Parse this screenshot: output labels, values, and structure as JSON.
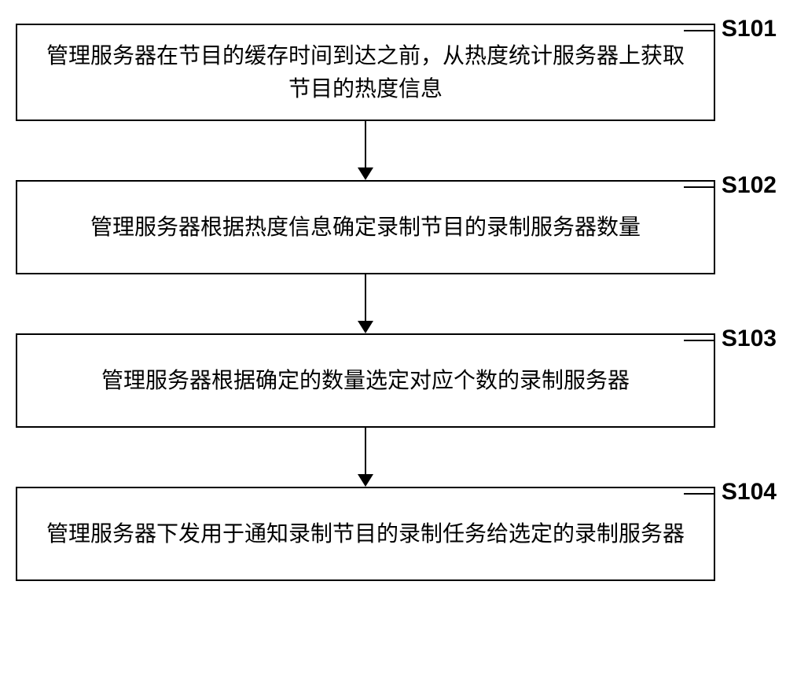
{
  "flowchart": {
    "type": "flowchart",
    "background_color": "#ffffff",
    "box_border_color": "#000000",
    "box_border_width": 2,
    "arrow_color": "#000000",
    "text_color": "#000000",
    "text_fontsize": 28,
    "label_fontsize": 30,
    "label_fontweight": "bold",
    "box_padding": 20,
    "arrow_height": 75,
    "steps": [
      {
        "id": "s101",
        "label": "S101",
        "text": "管理服务器在节目的缓存时间到达之前，从热度统计服务器上获取节目的热度信息"
      },
      {
        "id": "s102",
        "label": "S102",
        "text": "管理服务器根据热度信息确定录制节目的录制服务器数量"
      },
      {
        "id": "s103",
        "label": "S103",
        "text": "管理服务器根据确定的数量选定对应个数的录制服务器"
      },
      {
        "id": "s104",
        "label": "S104",
        "text": "管理服务器下发用于通知录制节目的录制任务给选定的录制服务器"
      }
    ]
  }
}
